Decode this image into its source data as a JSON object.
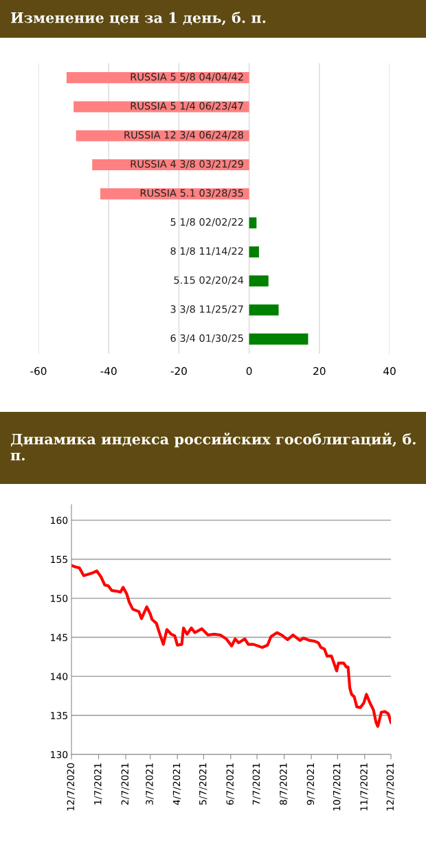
{
  "chart_data": [
    {
      "type": "bar",
      "orientation": "horizontal",
      "title": "Изменение цен за 1 день, б. п.",
      "categories": [
        "RUSSIA 5 5/8 04/04/42",
        "RUSSIA 5 1/4 06/23/47",
        "RUSSIA 12 3/4 06/24/28",
        "RUSSIA 4 3/8 03/21/29",
        "RUSSIA 5.1 03/28/35",
        "5 1/8 02/02/22",
        "8 1/8 11/14/22",
        "5.15 02/20/24",
        "3 3/8 11/25/27",
        "6 3/4 01/30/25"
      ],
      "values": [
        -52,
        -50,
        -49.3,
        -44.7,
        -42.4,
        2.1,
        2.8,
        5.5,
        8.4,
        16.8
      ],
      "colors": [
        "#ff8080",
        "#ff8080",
        "#ff8080",
        "#ff8080",
        "#ff8080",
        "#008000",
        "#008000",
        "#008000",
        "#008000",
        "#008000"
      ],
      "xlim": [
        -60,
        40
      ],
      "xticks": [
        -60,
        -40,
        -20,
        0,
        20,
        40
      ],
      "grid": "x"
    },
    {
      "type": "line",
      "title": "Динамика индекса российских гособлигаций, б. п.",
      "x": [
        "2020-12-07",
        "2020-12-12",
        "2020-12-16",
        "2020-12-21",
        "2020-12-30",
        "2021-01-05",
        "2021-01-10",
        "2021-01-14",
        "2021-01-18",
        "2021-01-22",
        "2021-01-28",
        "2021-02-01",
        "2021-02-04",
        "2021-02-08",
        "2021-02-11",
        "2021-02-15",
        "2021-02-22",
        "2021-02-25",
        "2021-03-03",
        "2021-03-07",
        "2021-03-09",
        "2021-03-14",
        "2021-03-18",
        "2021-03-22",
        "2021-03-26",
        "2021-03-31",
        "2021-04-04",
        "2021-04-07",
        "2021-04-12",
        "2021-04-14",
        "2021-04-18",
        "2021-04-23",
        "2021-04-27",
        "2021-05-05",
        "2021-05-12",
        "2021-05-19",
        "2021-05-26",
        "2021-06-02",
        "2021-06-08",
        "2021-06-12",
        "2021-06-16",
        "2021-06-23",
        "2021-06-27",
        "2021-07-03",
        "2021-07-13",
        "2021-07-19",
        "2021-07-23",
        "2021-07-30",
        "2021-08-04",
        "2021-08-11",
        "2021-08-17",
        "2021-08-25",
        "2021-08-29",
        "2021-09-05",
        "2021-09-11",
        "2021-09-15",
        "2021-09-18",
        "2021-09-22",
        "2021-09-25",
        "2021-09-30",
        "2021-10-06",
        "2021-10-08",
        "2021-10-14",
        "2021-10-17",
        "2021-10-19",
        "2021-10-21",
        "2021-10-23",
        "2021-10-26",
        "2021-10-29",
        "2021-11-02",
        "2021-11-06",
        "2021-11-09",
        "2021-11-13",
        "2021-11-17",
        "2021-11-20",
        "2021-11-22",
        "2021-11-26",
        "2021-11-30",
        "2021-12-04",
        "2021-12-07"
      ],
      "series": [
        {
          "color": "#ff0000",
          "values": [
            154.2,
            154.0,
            153.9,
            152.9,
            153.2,
            153.5,
            152.7,
            151.7,
            151.6,
            151.0,
            150.9,
            150.8,
            151.4,
            150.6,
            149.5,
            148.6,
            148.3,
            147.4,
            148.9,
            148.0,
            147.3,
            146.8,
            145.4,
            144.1,
            146.0,
            145.4,
            145.2,
            144.0,
            144.1,
            146.2,
            145.4,
            146.2,
            145.6,
            146.1,
            145.3,
            145.4,
            145.3,
            144.8,
            143.9,
            144.8,
            144.3,
            144.8,
            144.1,
            144.1,
            143.7,
            144.0,
            145.1,
            145.6,
            145.3,
            144.7,
            145.3,
            144.6,
            144.9,
            144.6,
            144.5,
            144.3,
            143.7,
            143.5,
            142.6,
            142.6,
            140.7,
            141.7,
            141.7,
            141.2,
            141.2,
            138.5,
            137.7,
            137.4,
            136.1,
            136.0,
            136.6,
            137.7,
            136.6,
            135.7,
            134.1,
            133.6,
            135.4,
            135.5,
            135.2,
            134.1
          ]
        }
      ],
      "xlim": [
        "2020-12-07",
        "2021-12-07"
      ],
      "xticks": [
        {
          "value": "2020-12-07",
          "label": "12/7/2020"
        },
        {
          "value": "2021-01-07",
          "label": "1/7/2021"
        },
        {
          "value": "2021-02-07",
          "label": "2/7/2021"
        },
        {
          "value": "2021-03-07",
          "label": "3/7/2021"
        },
        {
          "value": "2021-04-07",
          "label": "4/7/2021"
        },
        {
          "value": "2021-05-07",
          "label": "5/7/2021"
        },
        {
          "value": "2021-06-07",
          "label": "6/7/2021"
        },
        {
          "value": "2021-07-07",
          "label": "7/7/2021"
        },
        {
          "value": "2021-08-07",
          "label": "8/7/2021"
        },
        {
          "value": "2021-09-07",
          "label": "9/7/2021"
        },
        {
          "value": "2021-10-07",
          "label": "10/7/2021"
        },
        {
          "value": "2021-11-07",
          "label": "11/7/2021"
        },
        {
          "value": "2021-12-07",
          "label": "12/7/2021"
        }
      ],
      "ylim": [
        130,
        162
      ],
      "yticks": [
        130,
        135,
        140,
        145,
        150,
        155,
        160
      ],
      "grid": "y"
    }
  ]
}
